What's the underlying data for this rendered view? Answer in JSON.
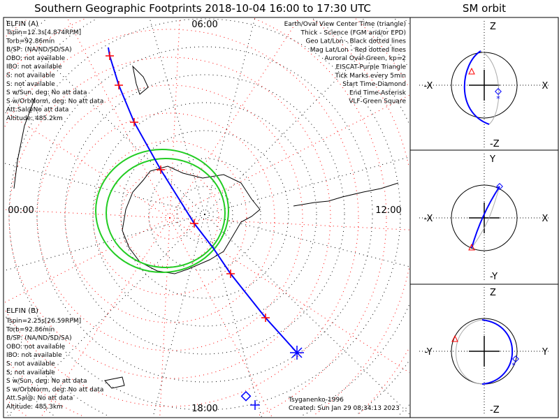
{
  "title": "Southern Geographic Footprints 2018-10-04 16:00 to 17:30 UTC",
  "time_labels": {
    "top": "06:00",
    "bottom": "18:00",
    "left": "00:00",
    "right": "12:00"
  },
  "legend": [
    {
      "text": "Earth/Oval View Center Time (triangle)",
      "color": "#000000"
    },
    {
      "text": "Thick - Science (FGM and/or EPD)",
      "color": "#000000"
    },
    {
      "text": "Geo Lat/Lon - Black dotted lines",
      "color": "#000000"
    },
    {
      "text": "Mag Lat/Lon - Red dotted lines",
      "color": "#ff0000"
    },
    {
      "text": "Auroral Oval-Green, kp=2",
      "color": "#22cc22"
    },
    {
      "text": "EISCAT-Purple Triangle",
      "color": "#ee82ee"
    },
    {
      "text": "Tick Marks every 5min",
      "color": "#000000"
    },
    {
      "text": "Start Time-Diamond",
      "color": "#000000"
    },
    {
      "text": "End Time-Asterisk",
      "color": "#000000"
    },
    {
      "text": "VLF-Green Square",
      "color": "#22cc22"
    }
  ],
  "elfin_a": {
    "name": "ELFIN (A)",
    "color": "#0000ff",
    "lines": [
      "Tspin=12.3s[4.874RPM]",
      "Torb=92.86min",
      "B/SP: (NA/ND/SD/SA)",
      "OBO: not available",
      "IBO: not available",
      "S: not available",
      "S: not available",
      "S w/Sun, deg: No att data",
      "S w/OrbNorm, deg: No att data",
      "Att.Sal@No att data",
      "Altitude: 485.2km"
    ]
  },
  "elfin_b": {
    "name": "ELFIN (B)",
    "color": "#ff3300",
    "lines": [
      "Tspin=2.25s[26.59RPM]",
      "Torb=92.86min",
      "B/SP: (NA/ND/SD/SA)",
      "OBO: not available",
      "IBO: not available",
      "S: not available",
      "S: not available",
      "S w/Sun, deg: No att data",
      "S w/OrbNorm, deg: No att data",
      "Att.Sal@: No att data",
      "Altitude: 485.3km"
    ]
  },
  "footer": {
    "model": "Tsyganenko-1996",
    "created": "Created: Sun Jan 29 08:34:13 2023"
  },
  "sm_orbit": {
    "title": "SM orbit",
    "panels": [
      {
        "top": "Z",
        "bottom": "-Z",
        "left": "-X",
        "right": "X"
      },
      {
        "top": "Y",
        "bottom": "-Y",
        "left": "-X",
        "right": "X"
      },
      {
        "top": "Z",
        "bottom": "-Z",
        "left": "-Y",
        "right": "Y"
      }
    ]
  },
  "colors": {
    "track": "#0000ff",
    "ticks": "#ff0000",
    "oval": "#22cc22",
    "geo_grid": "#000000",
    "mag_grid": "#ff0000",
    "orbit_back": "#aaaaaa"
  }
}
